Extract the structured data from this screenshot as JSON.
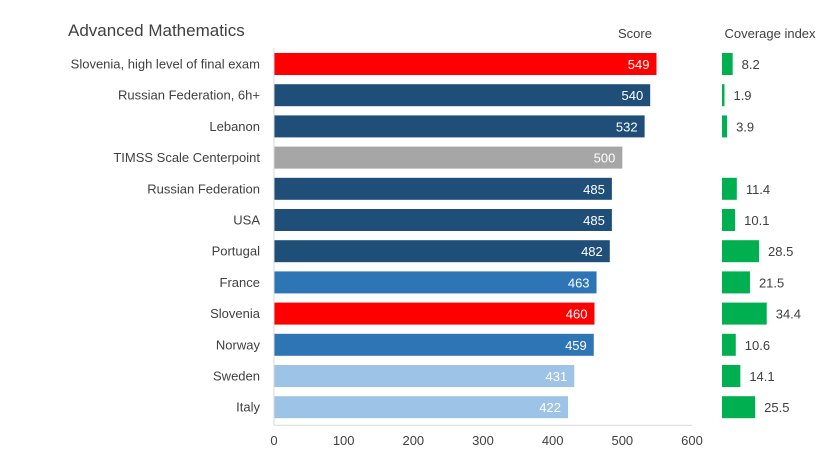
{
  "chart_data": {
    "type": "bar",
    "orientation": "horizontal",
    "title": "Advanced Mathematics",
    "score_header": "Score",
    "coverage_header": "Coverage index",
    "categories": [
      "Slovenia, high level of final exam",
      "Russian Federation, 6h+",
      "Lebanon",
      "TIMSS Scale Centerpoint",
      "Russian Federation",
      "USA",
      "Portugal",
      "France",
      "Slovenia",
      "Norway",
      "Sweden",
      "Italy"
    ],
    "values": [
      549,
      540,
      532,
      500,
      485,
      485,
      482,
      463,
      460,
      459,
      431,
      422
    ],
    "coverage": [
      8.2,
      1.9,
      3.9,
      null,
      11.4,
      10.1,
      28.5,
      21.5,
      34.4,
      10.6,
      14.1,
      25.5
    ],
    "bar_colors": [
      "#ff0000",
      "#1f4e79",
      "#1f4e79",
      "#a6a6a6",
      "#1f4e79",
      "#1f4e79",
      "#1f4e79",
      "#2e75b6",
      "#ff0000",
      "#2e75b6",
      "#9dc3e6",
      "#9dc3e6"
    ],
    "coverage_color": "#00b050",
    "xlim": [
      0,
      600
    ],
    "xticks": [
      0,
      100,
      200,
      300,
      400,
      500,
      600
    ],
    "grid": false,
    "legend": "none"
  }
}
